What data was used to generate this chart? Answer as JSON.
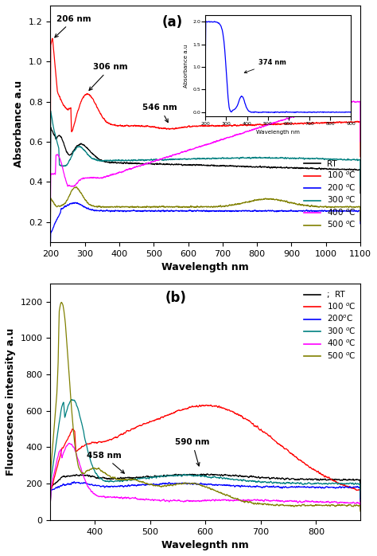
{
  "panel_a": {
    "title": "(a)",
    "xlabel": "Wavelength nm",
    "ylabel": "Absorbance a.u",
    "xlim": [
      200,
      1100
    ],
    "ylim": [
      0.1,
      1.28
    ],
    "yticks": [
      0.2,
      0.4,
      0.6,
      0.8,
      1.0,
      1.2
    ],
    "xticks": [
      200,
      300,
      400,
      500,
      600,
      700,
      800,
      900,
      1000,
      1100
    ],
    "line_colors": [
      "black",
      "red",
      "blue",
      "teal",
      "magenta",
      "olive"
    ],
    "inset": {
      "xlabel": "Wavelength nm",
      "ylabel": "Absorbance a.u",
      "color": "blue"
    }
  },
  "panel_b": {
    "title": "(b)",
    "xlabel": "Wavelegnth nm",
    "ylabel": "Fluorescence intensity a.u",
    "xlim": [
      320,
      880
    ],
    "ylim": [
      0,
      1300
    ],
    "yticks": [
      0,
      200,
      400,
      600,
      800,
      1000,
      1200
    ],
    "xticks": [
      400,
      500,
      600,
      700,
      800
    ],
    "line_colors": [
      "black",
      "red",
      "blue",
      "teal",
      "magenta",
      "olive"
    ]
  }
}
